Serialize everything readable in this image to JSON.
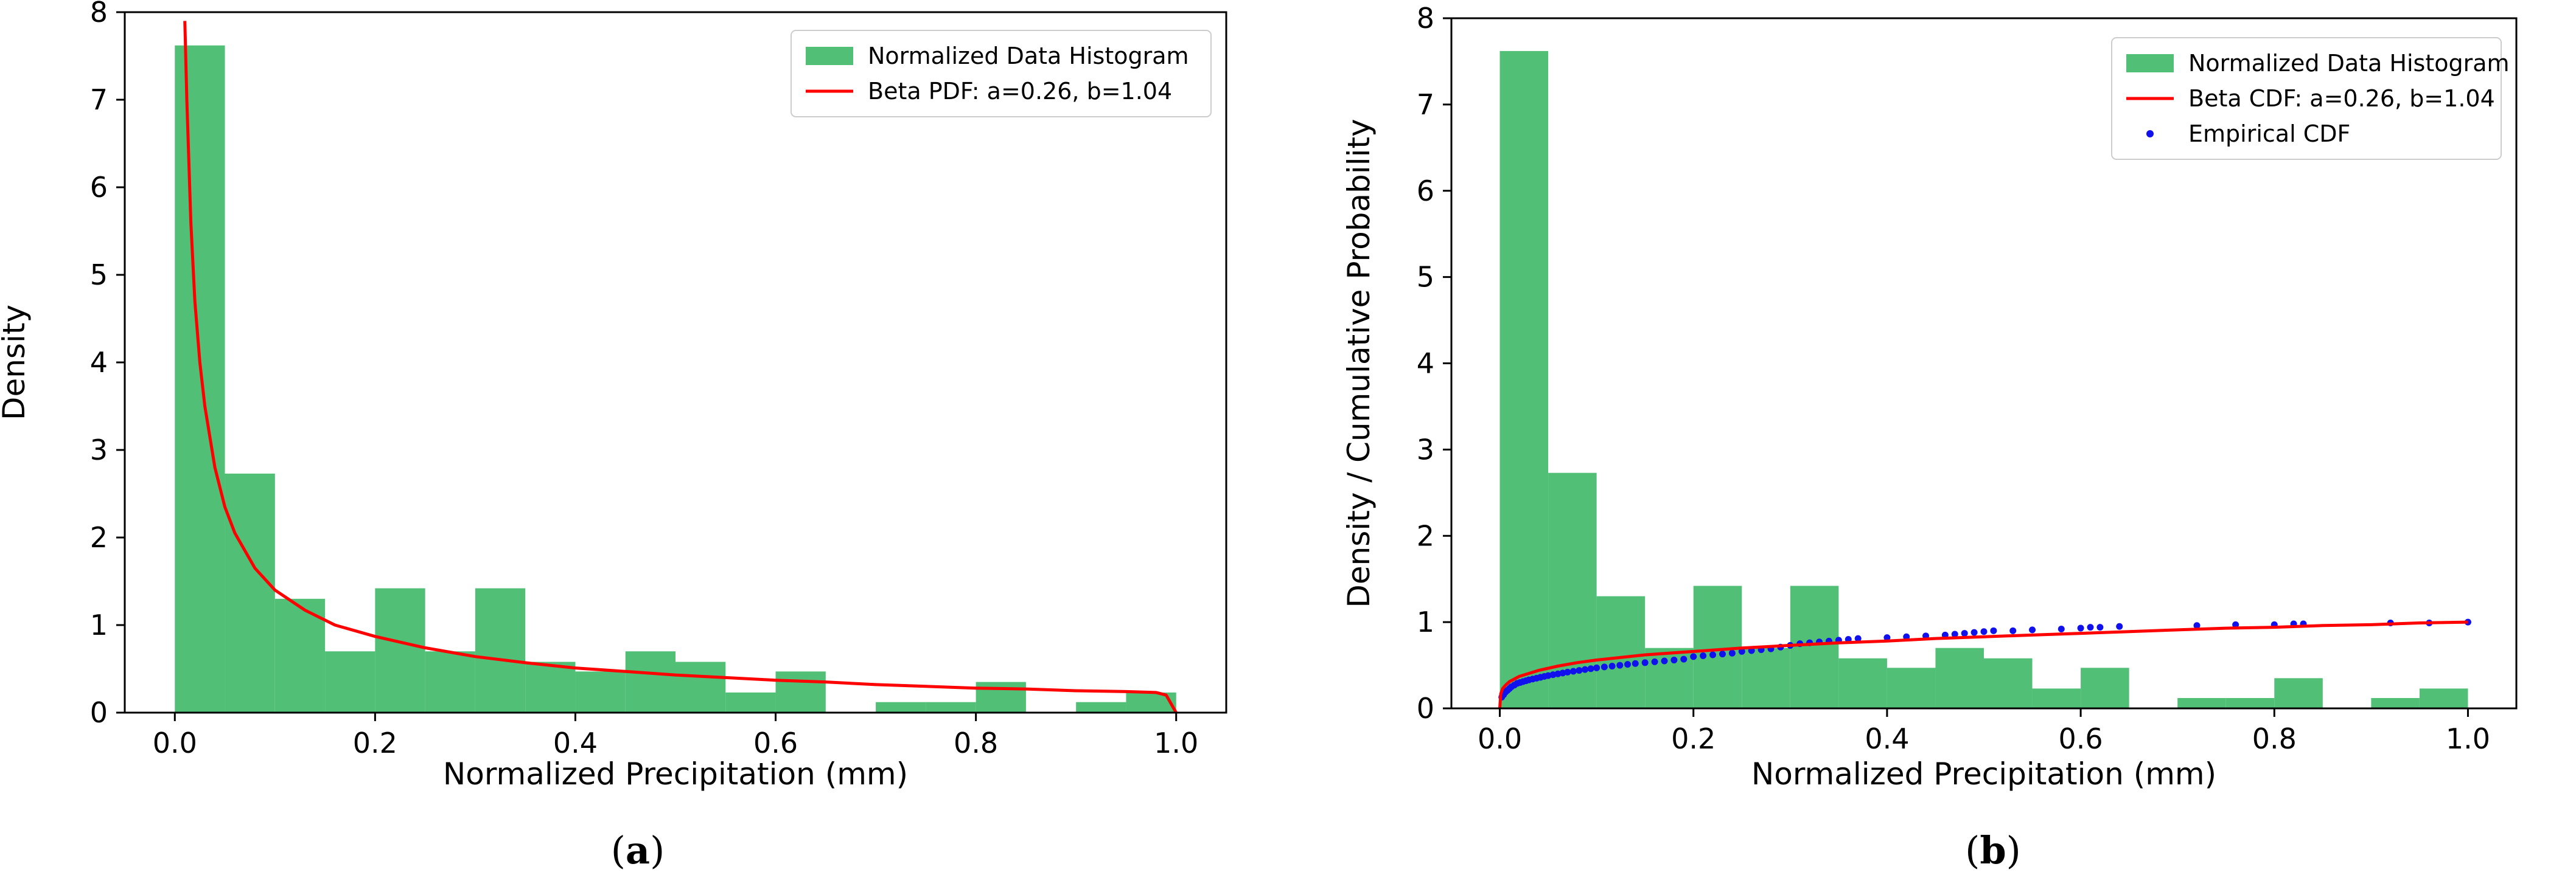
{
  "colors": {
    "histogram": "#52bf77",
    "pdf_line": "#ff0000",
    "cdf_line": "#ff0000",
    "ecdf_points": "#1111ee",
    "axis": "#000000"
  },
  "chart_data": [
    {
      "id": "a",
      "type": "bar",
      "panel_label": "a",
      "title": "",
      "xlabel": "Normalized Precipitation (mm)",
      "ylabel": "Density",
      "xlim": [
        -0.05,
        1.05
      ],
      "ylim": [
        0,
        8
      ],
      "xticks": [
        0.0,
        0.2,
        0.4,
        0.6,
        0.8,
        1.0
      ],
      "xtick_labels": [
        "0.0",
        "0.2",
        "0.4",
        "0.6",
        "0.8",
        "1.0"
      ],
      "yticks": [
        0,
        1,
        2,
        3,
        4,
        5,
        6,
        7,
        8
      ],
      "ytick_labels": [
        "0",
        "1",
        "2",
        "3",
        "4",
        "5",
        "6",
        "7",
        "8"
      ],
      "legend": [
        "Normalized Data Histogram",
        "Beta PDF: a=0.26, b=1.04"
      ],
      "legend_position": "top-right",
      "histogram": {
        "name": "Normalized Data Histogram",
        "bin_edges": [
          0.0,
          0.05,
          0.1,
          0.15,
          0.2,
          0.25,
          0.3,
          0.35,
          0.4,
          0.45,
          0.5,
          0.55,
          0.6,
          0.65,
          0.7,
          0.75,
          0.8,
          0.85,
          0.9,
          0.95,
          1.0
        ],
        "values": [
          7.62,
          2.73,
          1.3,
          0.7,
          1.42,
          0.7,
          1.42,
          0.58,
          0.47,
          0.7,
          0.58,
          0.23,
          0.47,
          0.0,
          0.12,
          0.12,
          0.35,
          0.0,
          0.12,
          0.23
        ]
      },
      "line": {
        "name": "Beta PDF: a=0.26, b=1.04",
        "x": [
          0.01,
          0.012,
          0.016,
          0.02,
          0.025,
          0.03,
          0.04,
          0.05,
          0.06,
          0.08,
          0.1,
          0.13,
          0.16,
          0.2,
          0.25,
          0.3,
          0.35,
          0.4,
          0.45,
          0.5,
          0.55,
          0.6,
          0.65,
          0.7,
          0.75,
          0.8,
          0.85,
          0.9,
          0.95,
          0.98,
          0.99,
          1.0
        ],
        "y": [
          7.9,
          7.0,
          5.6,
          4.7,
          4.0,
          3.5,
          2.8,
          2.35,
          2.05,
          1.65,
          1.4,
          1.17,
          1.0,
          0.87,
          0.74,
          0.64,
          0.57,
          0.51,
          0.47,
          0.43,
          0.4,
          0.37,
          0.35,
          0.32,
          0.3,
          0.28,
          0.27,
          0.25,
          0.24,
          0.23,
          0.2,
          0.0
        ]
      }
    },
    {
      "id": "b",
      "type": "bar",
      "panel_label": "b",
      "title": "",
      "xlabel": "Normalized Precipitation (mm)",
      "ylabel": "Density / Cumulative Probability",
      "xlim": [
        -0.05,
        1.05
      ],
      "ylim": [
        0,
        8
      ],
      "xticks": [
        0.0,
        0.2,
        0.4,
        0.6,
        0.8,
        1.0
      ],
      "xtick_labels": [
        "0.0",
        "0.2",
        "0.4",
        "0.6",
        "0.8",
        "1.0"
      ],
      "yticks": [
        0,
        1,
        2,
        3,
        4,
        5,
        6,
        7,
        8
      ],
      "ytick_labels": [
        "0",
        "1",
        "2",
        "3",
        "4",
        "5",
        "6",
        "7",
        "8"
      ],
      "legend": [
        "Normalized Data Histogram",
        "Beta CDF: a=0.26, b=1.04",
        "Empirical CDF"
      ],
      "legend_position": "top-right",
      "histogram": {
        "name": "Normalized Data Histogram",
        "bin_edges": [
          0.0,
          0.05,
          0.1,
          0.15,
          0.2,
          0.25,
          0.3,
          0.35,
          0.4,
          0.45,
          0.5,
          0.55,
          0.6,
          0.65,
          0.7,
          0.75,
          0.8,
          0.85,
          0.9,
          0.95,
          1.0
        ],
        "values": [
          7.62,
          2.73,
          1.3,
          0.7,
          1.42,
          0.7,
          1.42,
          0.58,
          0.47,
          0.7,
          0.58,
          0.23,
          0.47,
          0.0,
          0.12,
          0.12,
          0.35,
          0.0,
          0.12,
          0.23
        ]
      },
      "line": {
        "name": "Beta CDF: a=0.26, b=1.04",
        "x": [
          0.0,
          0.001,
          0.003,
          0.006,
          0.01,
          0.02,
          0.04,
          0.06,
          0.08,
          0.1,
          0.15,
          0.2,
          0.25,
          0.3,
          0.35,
          0.4,
          0.45,
          0.5,
          0.55,
          0.6,
          0.65,
          0.7,
          0.75,
          0.8,
          0.85,
          0.9,
          0.95,
          1.0
        ],
        "y": [
          0.0,
          0.17,
          0.23,
          0.27,
          0.31,
          0.37,
          0.44,
          0.49,
          0.53,
          0.56,
          0.62,
          0.66,
          0.7,
          0.73,
          0.76,
          0.78,
          0.81,
          0.83,
          0.85,
          0.87,
          0.89,
          0.91,
          0.93,
          0.94,
          0.96,
          0.97,
          0.99,
          1.0
        ]
      },
      "scatter": {
        "name": "Empirical CDF",
        "x": [
          0.002,
          0.004,
          0.006,
          0.008,
          0.01,
          0.012,
          0.015,
          0.018,
          0.021,
          0.024,
          0.027,
          0.03,
          0.034,
          0.038,
          0.042,
          0.046,
          0.05,
          0.055,
          0.06,
          0.065,
          0.07,
          0.076,
          0.082,
          0.088,
          0.094,
          0.1,
          0.108,
          0.116,
          0.124,
          0.132,
          0.14,
          0.15,
          0.16,
          0.17,
          0.18,
          0.19,
          0.2,
          0.21,
          0.22,
          0.23,
          0.24,
          0.25,
          0.26,
          0.27,
          0.28,
          0.29,
          0.3,
          0.31,
          0.32,
          0.33,
          0.34,
          0.35,
          0.36,
          0.37,
          0.4,
          0.42,
          0.44,
          0.46,
          0.47,
          0.48,
          0.49,
          0.5,
          0.51,
          0.53,
          0.55,
          0.58,
          0.6,
          0.61,
          0.62,
          0.64,
          0.72,
          0.76,
          0.8,
          0.82,
          0.83,
          0.92,
          0.96,
          1.0
        ],
        "y": [
          0.13,
          0.16,
          0.19,
          0.21,
          0.23,
          0.25,
          0.27,
          0.29,
          0.3,
          0.31,
          0.32,
          0.33,
          0.34,
          0.35,
          0.36,
          0.37,
          0.38,
          0.39,
          0.4,
          0.41,
          0.42,
          0.43,
          0.44,
          0.45,
          0.46,
          0.47,
          0.48,
          0.49,
          0.5,
          0.51,
          0.52,
          0.53,
          0.54,
          0.55,
          0.56,
          0.57,
          0.6,
          0.61,
          0.62,
          0.63,
          0.64,
          0.66,
          0.67,
          0.68,
          0.69,
          0.71,
          0.73,
          0.75,
          0.76,
          0.77,
          0.78,
          0.79,
          0.8,
          0.81,
          0.82,
          0.83,
          0.84,
          0.85,
          0.86,
          0.87,
          0.88,
          0.89,
          0.9,
          0.9,
          0.91,
          0.92,
          0.93,
          0.94,
          0.94,
          0.95,
          0.96,
          0.97,
          0.97,
          0.98,
          0.98,
          0.99,
          0.99,
          1.0
        ]
      }
    }
  ]
}
